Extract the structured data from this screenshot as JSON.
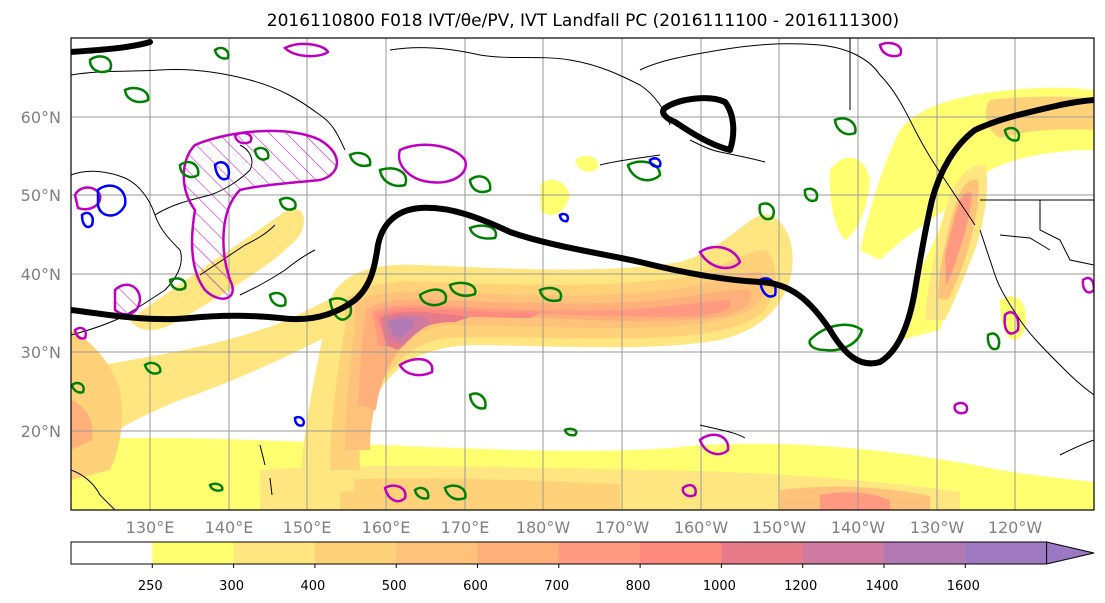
{
  "title": "2016110800 F018 IVT/θe/PV, IVT Landfall PC (2016111100 - 2016111300)",
  "map": {
    "lat_labels": [
      "60°N",
      "50°N",
      "40°N",
      "30°N",
      "20°N"
    ],
    "lon_labels": [
      "130°E",
      "140°E",
      "150°E",
      "160°E",
      "170°E",
      "180°W",
      "170°W",
      "160°W",
      "150°W",
      "140°W",
      "130°W",
      "120°W"
    ],
    "lat_range": [
      10,
      70
    ],
    "lon_range": [
      120,
      250
    ],
    "grid": true
  },
  "colorbar": {
    "levels": [
      "250",
      "300",
      "400",
      "500",
      "600",
      "700",
      "800",
      "1000",
      "1200",
      "1400",
      "1600"
    ],
    "colors": [
      "#ffffff",
      "#ffff70",
      "#ffe680",
      "#ffd27a",
      "#ffc27a",
      "#ffb07a",
      "#ff9a80",
      "#ff8a80",
      "#e87b8a",
      "#cf7aa0",
      "#b27ab5",
      "#a07ac0",
      "#9a78c4"
    ],
    "extend": "max"
  },
  "contour_colors": {
    "thick_black": "#000000",
    "green": "#008000",
    "magenta": "#c000c0",
    "blue": "#0000ff"
  }
}
